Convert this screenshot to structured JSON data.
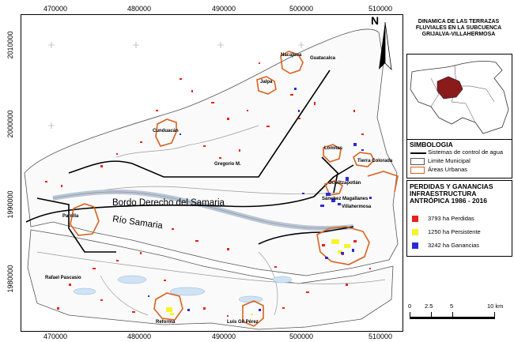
{
  "map": {
    "x_ticks": [
      "470000",
      "480000",
      "490000",
      "500000",
      "510000"
    ],
    "y_ticks": [
      "2010000",
      "2000000",
      "1990000",
      "1980000"
    ],
    "labels": {
      "bordo": "Bordo Derecho del Samaria",
      "rio": "Río Samaria",
      "nacajuca": "Nacajuca",
      "guatacalca": "Guatacalca",
      "jalpa": "Jalpa",
      "cunduacan": "Cunduacán",
      "gregorio": "Gregorio M.",
      "lomitas": "Lomitas",
      "tierra_colorada": "Tierra Colorada",
      "ocuiltzapotlan": "Ocuiltzapotlán",
      "villahermosa": "Villahermosa",
      "parrilla": "Parrilla",
      "sanchez_magallanes": "Sánchez Magallanes",
      "rafael_pascasio": "Rafael Pascasio",
      "reforma": "Reforma",
      "luis_gil_perez": "Luis Gil Pérez"
    }
  },
  "title": "DINAMICA DE LAS TERRAZAS FLUVIALES EN LA SUBCUENCA GRIJALVA-VILLAHERMOSA",
  "north_letter": "N",
  "symbology": {
    "title": "SIMBOLOGIA",
    "items": [
      {
        "label": "Sistemas de control de agua",
        "icon": "black-line"
      },
      {
        "label": "Limite Municipal",
        "icon": "gray-outline-box"
      },
      {
        "label": "Áreas Urbanas",
        "icon": "orange-outline-box"
      }
    ]
  },
  "changes": {
    "title": "PERDIDAS Y GANANCIAS INFRAESTRUCTURA ANTRÓPICA 1986 - 2016",
    "items": [
      {
        "label": "3793 ha Perdidas",
        "color": "#e8201e"
      },
      {
        "label": "1250 ha Persistente",
        "color": "#f5f52a"
      },
      {
        "label": "3242 ha Ganancias",
        "color": "#2b2bd6"
      }
    ]
  },
  "scale": {
    "ticks": [
      "0",
      "2.5",
      "5",
      "10 km"
    ]
  },
  "colors": {
    "urban": "#d9621e",
    "control": "#000000",
    "inset_area": "#8b1a1a"
  }
}
